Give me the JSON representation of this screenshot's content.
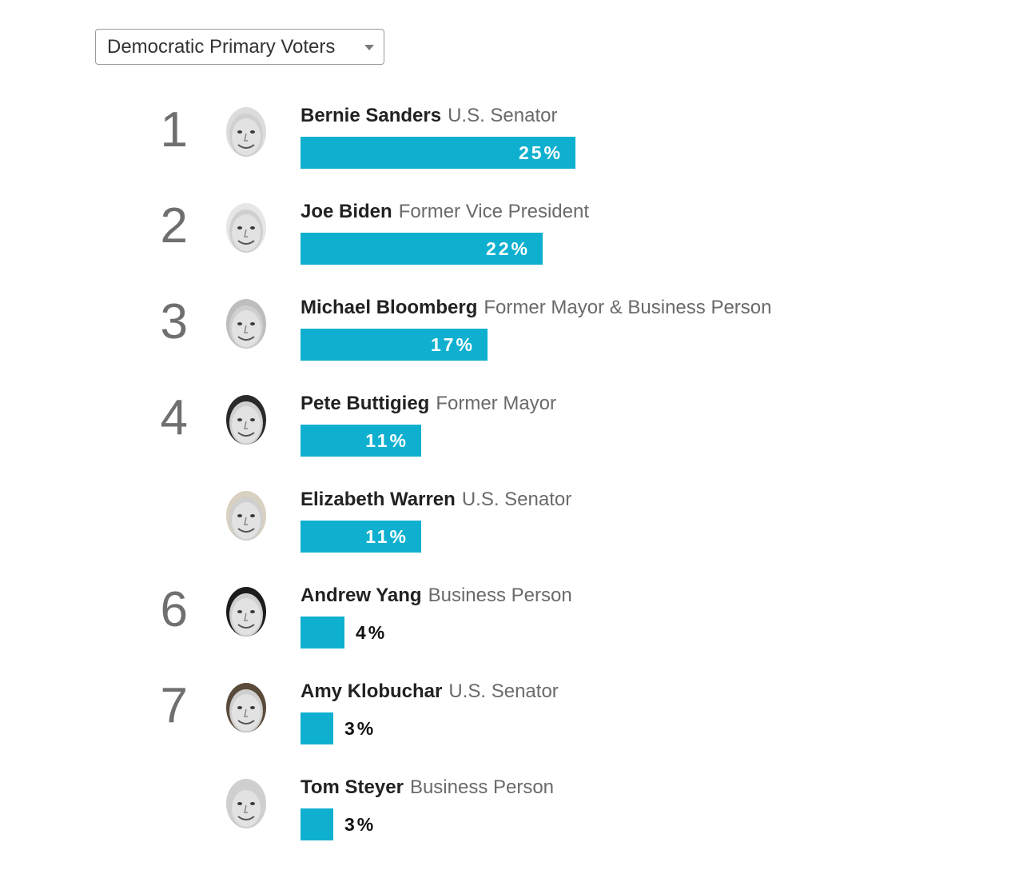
{
  "filter": {
    "selected": "Democratic Primary Voters"
  },
  "colors": {
    "bar": "#0fb0cf",
    "rank": "#6f6f6f",
    "title": "#6a6a6a"
  },
  "chart_data": {
    "type": "bar",
    "orientation": "horizontal",
    "xlim": [
      0,
      25
    ],
    "categories": [
      "Bernie Sanders",
      "Joe Biden",
      "Michael Bloomberg",
      "Pete Buttigieg",
      "Elizabeth Warren",
      "Andrew Yang",
      "Amy Klobuchar",
      "Tom Steyer"
    ],
    "values": [
      25,
      22,
      17,
      11,
      11,
      4,
      3,
      3
    ],
    "candidates": [
      {
        "rank": "1",
        "name": "Bernie Sanders",
        "title": "U.S. Senator",
        "value": 25,
        "label": "25%",
        "avatar": "bernie-sanders-portrait"
      },
      {
        "rank": "2",
        "name": "Joe Biden",
        "title": "Former Vice President",
        "value": 22,
        "label": "22%",
        "avatar": "joe-biden-portrait"
      },
      {
        "rank": "3",
        "name": "Michael Bloomberg",
        "title": "Former Mayor & Business Person",
        "value": 17,
        "label": "17%",
        "avatar": "michael-bloomberg-portrait"
      },
      {
        "rank": "4",
        "name": "Pete Buttigieg",
        "title": "Former Mayor",
        "value": 11,
        "label": "11%",
        "avatar": "pete-buttigieg-portrait"
      },
      {
        "rank": "",
        "name": "Elizabeth Warren",
        "title": "U.S. Senator",
        "value": 11,
        "label": "11%",
        "avatar": "elizabeth-warren-portrait"
      },
      {
        "rank": "6",
        "name": "Andrew Yang",
        "title": "Business Person",
        "value": 4,
        "label": "4%",
        "avatar": "andrew-yang-portrait"
      },
      {
        "rank": "7",
        "name": "Amy Klobuchar",
        "title": "U.S. Senator",
        "value": 3,
        "label": "3%",
        "avatar": "amy-klobuchar-portrait"
      },
      {
        "rank": "",
        "name": "Tom Steyer",
        "title": "Business Person",
        "value": 3,
        "label": "3%",
        "avatar": "tom-steyer-portrait"
      }
    ]
  }
}
